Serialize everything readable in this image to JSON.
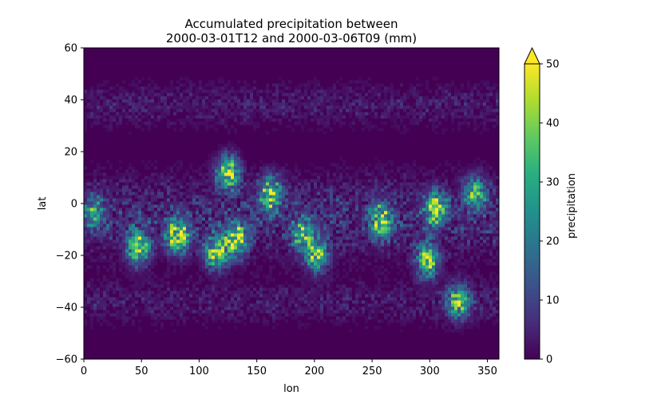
{
  "chart_data": {
    "type": "heatmap",
    "title_lines": [
      "Accumulated precipitation between",
      "2000-03-01T12 and 2000-03-06T09 (mm)"
    ],
    "xlabel": "lon",
    "ylabel": "lat",
    "xlim": [
      0,
      360
    ],
    "ylim": [
      -60,
      60
    ],
    "xticks": [
      0,
      50,
      100,
      150,
      200,
      250,
      300,
      350
    ],
    "yticks": [
      -60,
      -40,
      -20,
      0,
      20,
      40,
      60
    ],
    "data_lat_range": [
      -50,
      50
    ],
    "colormap": "viridis",
    "colorbar": {
      "label": "precipitation",
      "range": [
        0,
        50
      ],
      "ticks": [
        0,
        10,
        20,
        30,
        40,
        50
      ],
      "extend": "max"
    },
    "background_value": 0,
    "precip_regions": [
      {
        "lon": 125,
        "lat": 12,
        "intensity": 55
      },
      {
        "lon": 162,
        "lat": 4,
        "intensity": 50
      },
      {
        "lon": 82,
        "lat": -13,
        "intensity": 55
      },
      {
        "lon": 47,
        "lat": -17,
        "intensity": 55
      },
      {
        "lon": 115,
        "lat": -19,
        "intensity": 50
      },
      {
        "lon": 132,
        "lat": -14,
        "intensity": 55
      },
      {
        "lon": 258,
        "lat": -7,
        "intensity": 50
      },
      {
        "lon": 305,
        "lat": -2,
        "intensity": 50
      },
      {
        "lon": 298,
        "lat": -22,
        "intensity": 50
      },
      {
        "lon": 325,
        "lat": -38,
        "intensity": 45
      },
      {
        "lon": 202,
        "lat": -20,
        "intensity": 45
      },
      {
        "lon": 190,
        "lat": -12,
        "intensity": 40
      },
      {
        "lon": 8,
        "lat": -3,
        "intensity": 30
      },
      {
        "lon": 340,
        "lat": 4,
        "intensity": 35
      }
    ]
  }
}
